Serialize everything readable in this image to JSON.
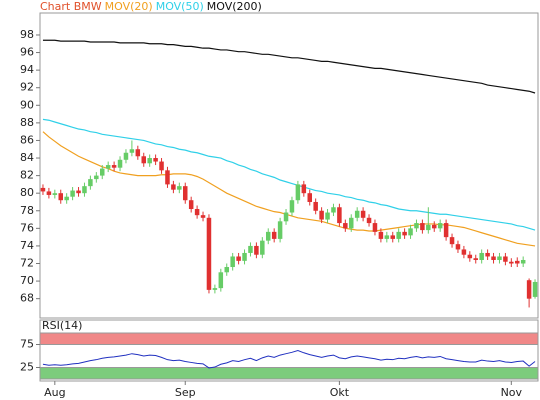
{
  "chart_data": [
    {
      "type": "candlestick",
      "title": "Chart BMW",
      "title_color": "#e0502a",
      "categories": [
        null,
        null,
        "Aug",
        null,
        null,
        null,
        null,
        null,
        null,
        null,
        null,
        null,
        null,
        null,
        null,
        null,
        null,
        null,
        null,
        null,
        null,
        null,
        null,
        null,
        "Sep",
        null,
        null,
        null,
        null,
        null,
        null,
        null,
        null,
        null,
        null,
        null,
        null,
        null,
        null,
        null,
        null,
        null,
        null,
        null,
        null,
        null,
        null,
        null,
        null,
        null,
        "Okt",
        null,
        null,
        null,
        null,
        null,
        null,
        null,
        null,
        null,
        null,
        null,
        null,
        null,
        null,
        null,
        null,
        null,
        null,
        null,
        null,
        null,
        null,
        null,
        null,
        null,
        null,
        null,
        null,
        "Nov",
        null,
        null,
        null,
        null
      ],
      "open": [
        80.6,
        80.2,
        79.8,
        80.0,
        79.2,
        79.6,
        80.3,
        80.0,
        80.8,
        81.6,
        82.0,
        82.8,
        83.2,
        82.9,
        83.8,
        84.6,
        85.0,
        84.2,
        83.4,
        84.0,
        83.6,
        82.6,
        81.0,
        80.4,
        80.8,
        79.2,
        78.2,
        77.5,
        77.2,
        69.0,
        69.2,
        71.0,
        71.6,
        72.8,
        72.3,
        73.2,
        74.0,
        73.0,
        74.6,
        75.6,
        74.8,
        76.8,
        77.8,
        79.2,
        81.0,
        80.0,
        79.0,
        78.0,
        77.0,
        77.8,
        78.4,
        76.6,
        76.0,
        77.2,
        78.0,
        77.2,
        76.6,
        75.6,
        74.8,
        75.2,
        74.8,
        75.6,
        75.2,
        76.0,
        76.6,
        75.8,
        76.4,
        76.0,
        76.6,
        75.0,
        74.2,
        73.6,
        73.0,
        72.6,
        72.4,
        73.2,
        72.8,
        72.4,
        72.8,
        72.2,
        72.3,
        72.0,
        70.1,
        68.2
      ],
      "high": [
        81.0,
        80.6,
        80.4,
        80.4,
        80.0,
        80.7,
        80.7,
        81.2,
        82.0,
        82.4,
        83.2,
        83.6,
        83.6,
        84.2,
        85.0,
        86.0,
        85.4,
        84.6,
        84.4,
        84.4,
        84.0,
        83.0,
        81.4,
        81.2,
        81.2,
        79.6,
        78.6,
        77.9,
        77.6,
        69.6,
        71.4,
        72.0,
        73.2,
        73.2,
        73.6,
        74.4,
        74.4,
        75.0,
        76.0,
        76.0,
        77.2,
        78.2,
        79.6,
        81.4,
        81.4,
        80.4,
        79.4,
        78.4,
        78.2,
        78.8,
        78.8,
        77.0,
        77.6,
        78.4,
        78.4,
        77.6,
        77.0,
        76.0,
        75.6,
        75.6,
        76.0,
        76.0,
        76.4,
        77.0,
        77.0,
        78.4,
        76.8,
        77.0,
        77.0,
        75.4,
        74.6,
        74.0,
        73.4,
        73.0,
        73.6,
        73.6,
        73.2,
        73.2,
        73.2,
        72.6,
        72.7,
        72.8,
        70.3,
        70.2
      ],
      "low": [
        79.8,
        79.4,
        79.4,
        78.8,
        78.8,
        79.2,
        79.6,
        79.6,
        80.4,
        81.2,
        81.6,
        82.4,
        82.5,
        82.5,
        83.4,
        84.2,
        83.8,
        83.0,
        83.0,
        83.2,
        82.2,
        80.6,
        80.0,
        80.0,
        78.8,
        77.8,
        77.1,
        76.8,
        68.6,
        68.6,
        68.8,
        70.6,
        71.2,
        71.9,
        71.9,
        72.8,
        72.6,
        72.6,
        74.2,
        74.4,
        74.4,
        76.4,
        77.4,
        78.8,
        79.6,
        78.6,
        77.6,
        76.6,
        76.6,
        77.4,
        76.2,
        75.6,
        75.6,
        76.8,
        76.8,
        76.2,
        75.2,
        74.4,
        74.4,
        74.4,
        74.4,
        74.8,
        74.8,
        75.6,
        75.4,
        75.4,
        75.6,
        75.6,
        74.6,
        73.8,
        73.2,
        72.6,
        72.2,
        72.0,
        72.0,
        72.4,
        72.0,
        72.0,
        71.8,
        71.6,
        71.6,
        71.6,
        67.0,
        68.0
      ],
      "close": [
        80.2,
        79.8,
        80.0,
        79.2,
        79.6,
        80.3,
        80.0,
        80.8,
        81.6,
        82.0,
        82.8,
        83.2,
        82.9,
        83.8,
        84.6,
        85.0,
        84.2,
        83.4,
        84.0,
        83.6,
        82.6,
        81.0,
        80.4,
        80.8,
        79.2,
        78.2,
        77.5,
        77.2,
        69.0,
        69.2,
        71.0,
        71.6,
        72.8,
        72.3,
        73.2,
        74.0,
        73.0,
        74.6,
        75.6,
        74.8,
        76.8,
        77.8,
        79.2,
        81.0,
        80.0,
        79.0,
        78.0,
        77.0,
        77.8,
        78.4,
        76.6,
        76.0,
        77.2,
        78.0,
        77.2,
        76.6,
        75.6,
        74.8,
        75.2,
        74.8,
        75.6,
        75.2,
        76.0,
        76.6,
        75.8,
        76.4,
        76.0,
        76.6,
        75.0,
        74.2,
        73.6,
        73.0,
        72.6,
        72.4,
        73.2,
        72.8,
        72.4,
        72.8,
        72.2,
        72.0,
        72.0,
        72.4,
        68.0,
        69.9
      ],
      "up_color": "#66cc66",
      "down_color": "#e03030",
      "series": [
        {
          "name": "MOV(20)",
          "color": "#f0a020",
          "values": [
            87.0,
            86.4,
            85.9,
            85.4,
            85.0,
            84.6,
            84.2,
            83.9,
            83.6,
            83.3,
            83.0,
            82.8,
            82.5,
            82.3,
            82.2,
            82.1,
            82.0,
            82.0,
            82.0,
            82.0,
            82.1,
            82.1,
            82.2,
            82.2,
            82.2,
            82.1,
            81.9,
            81.6,
            81.2,
            80.8,
            80.4,
            80.0,
            79.7,
            79.4,
            79.1,
            78.8,
            78.5,
            78.3,
            78.1,
            77.9,
            77.8,
            77.6,
            77.4,
            77.2,
            77.1,
            77.0,
            76.9,
            76.8,
            76.6,
            76.4,
            76.2,
            76.0,
            75.9,
            75.8,
            75.8,
            75.7,
            75.7,
            75.8,
            75.9,
            76.0,
            76.1,
            76.2,
            76.3,
            76.4,
            76.5,
            76.5,
            76.5,
            76.4,
            76.4,
            76.3,
            76.2,
            76.1,
            75.9,
            75.7,
            75.5,
            75.3,
            75.1,
            74.9,
            74.7,
            74.5,
            74.3,
            74.2,
            74.1,
            74.0
          ]
        },
        {
          "name": "MOV(50)",
          "color": "#30d0e8",
          "values": [
            88.4,
            88.3,
            88.1,
            87.9,
            87.7,
            87.5,
            87.3,
            87.2,
            87.0,
            86.9,
            86.7,
            86.6,
            86.5,
            86.4,
            86.3,
            86.2,
            86.1,
            86.0,
            85.8,
            85.6,
            85.5,
            85.3,
            85.2,
            85.0,
            84.9,
            84.7,
            84.6,
            84.4,
            84.2,
            84.1,
            84.0,
            83.7,
            83.5,
            83.2,
            83.0,
            82.7,
            82.5,
            82.2,
            82.0,
            81.8,
            81.5,
            81.3,
            81.1,
            80.9,
            80.7,
            80.5,
            80.3,
            80.2,
            80.0,
            79.9,
            79.8,
            79.6,
            79.5,
            79.3,
            79.2,
            79.0,
            78.9,
            78.7,
            78.6,
            78.4,
            78.2,
            78.1,
            78.0,
            78.0,
            77.9,
            77.8,
            77.7,
            77.6,
            77.6,
            77.5,
            77.4,
            77.3,
            77.2,
            77.1,
            77.0,
            76.9,
            76.8,
            76.7,
            76.6,
            76.5,
            76.3,
            76.2,
            76.0,
            75.8
          ]
        },
        {
          "name": "MOV(200)",
          "color": "#111111",
          "values": [
            97.4,
            97.4,
            97.4,
            97.3,
            97.3,
            97.3,
            97.3,
            97.3,
            97.2,
            97.2,
            97.2,
            97.2,
            97.2,
            97.1,
            97.1,
            97.1,
            97.1,
            97.1,
            97.0,
            97.0,
            97.0,
            96.9,
            96.9,
            96.8,
            96.7,
            96.7,
            96.6,
            96.5,
            96.5,
            96.4,
            96.3,
            96.3,
            96.2,
            96.1,
            96.1,
            96.0,
            95.9,
            95.8,
            95.8,
            95.7,
            95.6,
            95.5,
            95.4,
            95.4,
            95.3,
            95.2,
            95.1,
            95.0,
            95.0,
            94.9,
            94.8,
            94.7,
            94.6,
            94.5,
            94.4,
            94.3,
            94.2,
            94.2,
            94.1,
            94.0,
            93.9,
            93.8,
            93.7,
            93.6,
            93.5,
            93.4,
            93.3,
            93.2,
            93.1,
            93.0,
            92.9,
            92.8,
            92.7,
            92.6,
            92.5,
            92.3,
            92.2,
            92.1,
            92.0,
            91.9,
            91.8,
            91.7,
            91.6,
            91.4
          ]
        }
      ],
      "ylim": [
        65.8,
        100.5
      ],
      "yticks": [
        68,
        70,
        72,
        74,
        76,
        78,
        80,
        82,
        84,
        86,
        88,
        90,
        92,
        94,
        96,
        98
      ]
    },
    {
      "type": "line",
      "title": "RSI(14)",
      "color": "#2030c0",
      "values": [
        32,
        30,
        31,
        30,
        31,
        33,
        34,
        37,
        40,
        42,
        45,
        47,
        48,
        50,
        52,
        55,
        53,
        50,
        52,
        51,
        47,
        42,
        40,
        41,
        38,
        36,
        34,
        33,
        24,
        26,
        32,
        35,
        40,
        38,
        42,
        45,
        40,
        46,
        50,
        47,
        52,
        55,
        58,
        62,
        57,
        53,
        50,
        47,
        50,
        52,
        46,
        44,
        48,
        50,
        48,
        46,
        44,
        41,
        43,
        42,
        45,
        44,
        47,
        49,
        46,
        48,
        47,
        49,
        44,
        42,
        40,
        38,
        37,
        37,
        41,
        39,
        38,
        40,
        37,
        36,
        38,
        39,
        28,
        38
      ],
      "ylim": [
        0,
        100
      ],
      "yticks": [
        25,
        75
      ],
      "bands": [
        {
          "from": 75,
          "to": 100,
          "color": "#f08888"
        },
        {
          "from": 0,
          "to": 25,
          "color": "#7ccc7c"
        }
      ]
    }
  ]
}
